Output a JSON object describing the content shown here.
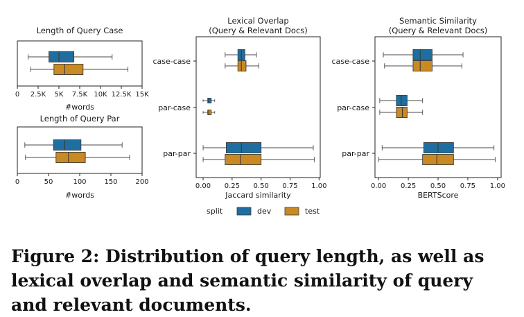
{
  "figure": {
    "caption": "Figure 2: Distribution of query length, as well as lexical overlap and semantic similarity of query and relevant documents."
  },
  "legend": {
    "title": "split",
    "entries": [
      {
        "label": "dev",
        "color": "#1f6ea0"
      },
      {
        "label": "test",
        "color": "#c98a24"
      }
    ]
  },
  "chart_data": [
    {
      "type": "box",
      "title": "Length of Query Case",
      "xlabel": "#words",
      "xlim": [
        0,
        15000
      ],
      "xticks": [
        0,
        2500,
        5000,
        7500,
        10000,
        12500,
        15000
      ],
      "xticklabels": [
        "0",
        "2.5K",
        "5K",
        "7.5K",
        "10K",
        "12.5K",
        "15K"
      ],
      "boxes": [
        {
          "split": "dev",
          "whisker_low": 1300,
          "q1": 3800,
          "median": 5000,
          "q3": 6800,
          "whisker_high": 11400
        },
        {
          "split": "test",
          "whisker_low": 1600,
          "q1": 4400,
          "median": 5700,
          "q3": 7900,
          "whisker_high": 13300
        }
      ]
    },
    {
      "type": "box",
      "title": "Length of Query Par",
      "xlabel": "#words",
      "xlim": [
        0,
        200
      ],
      "xticks": [
        0,
        50,
        100,
        150,
        200
      ],
      "xticklabels": [
        "0",
        "50",
        "100",
        "150",
        "200"
      ],
      "boxes": [
        {
          "split": "dev",
          "whisker_low": 12,
          "q1": 58,
          "median": 76,
          "q3": 102,
          "whisker_high": 168
        },
        {
          "split": "test",
          "whisker_low": 13,
          "q1": 62,
          "median": 82,
          "q3": 109,
          "whisker_high": 180
        }
      ]
    },
    {
      "type": "box",
      "title": "Lexical Overlap\n(Query & Relevant Docs)",
      "xlabel": "Jaccard similarity",
      "xlim": [
        -0.06,
        1.01
      ],
      "xticks": [
        0,
        0.25,
        0.5,
        0.75,
        1.0
      ],
      "xticklabels": [
        "0.00",
        "0.25",
        "0.50",
        "0.75",
        "1.00"
      ],
      "categories": [
        "case-case",
        "par-case",
        "par-par"
      ],
      "boxes": [
        {
          "category": "case-case",
          "split": "dev",
          "whisker_low": 0.19,
          "q1": 0.3,
          "median": 0.33,
          "q3": 0.36,
          "whisker_high": 0.46
        },
        {
          "category": "case-case",
          "split": "test",
          "whisker_low": 0.19,
          "q1": 0.3,
          "median": 0.33,
          "q3": 0.37,
          "whisker_high": 0.48
        },
        {
          "category": "par-case",
          "split": "dev",
          "whisker_low": 0.0,
          "q1": 0.04,
          "median": 0.05,
          "q3": 0.07,
          "whisker_high": 0.1
        },
        {
          "category": "par-case",
          "split": "test",
          "whisker_low": 0.0,
          "q1": 0.04,
          "median": 0.05,
          "q3": 0.07,
          "whisker_high": 0.1
        },
        {
          "category": "par-par",
          "split": "dev",
          "whisker_low": 0.0,
          "q1": 0.2,
          "median": 0.33,
          "q3": 0.5,
          "whisker_high": 0.95
        },
        {
          "category": "par-par",
          "split": "test",
          "whisker_low": 0.0,
          "q1": 0.19,
          "median": 0.32,
          "q3": 0.5,
          "whisker_high": 0.96
        }
      ]
    },
    {
      "type": "box",
      "title": "Semantic Similarity\n(Query & Relevant Docs)",
      "xlabel": "BERTScore",
      "xlim": [
        -0.03,
        1.03
      ],
      "xticks": [
        0,
        0.25,
        0.5,
        0.75,
        1.0
      ],
      "xticklabels": [
        "0.00",
        "0.25",
        "0.50",
        "0.75",
        "1.00"
      ],
      "categories": [
        "case-case",
        "par-case",
        "par-par"
      ],
      "boxes": [
        {
          "category": "case-case",
          "split": "dev",
          "whisker_low": 0.04,
          "q1": 0.29,
          "median": 0.35,
          "q3": 0.45,
          "whisker_high": 0.71
        },
        {
          "category": "case-case",
          "split": "test",
          "whisker_low": 0.05,
          "q1": 0.29,
          "median": 0.35,
          "q3": 0.45,
          "whisker_high": 0.7
        },
        {
          "category": "par-case",
          "split": "dev",
          "whisker_low": 0.01,
          "q1": 0.15,
          "median": 0.19,
          "q3": 0.24,
          "whisker_high": 0.37
        },
        {
          "category": "par-case",
          "split": "test",
          "whisker_low": 0.01,
          "q1": 0.15,
          "median": 0.2,
          "q3": 0.24,
          "whisker_high": 0.37
        },
        {
          "category": "par-par",
          "split": "dev",
          "whisker_low": 0.03,
          "q1": 0.38,
          "median": 0.5,
          "q3": 0.63,
          "whisker_high": 0.97
        },
        {
          "category": "par-par",
          "split": "test",
          "whisker_low": 0.0,
          "q1": 0.37,
          "median": 0.49,
          "q3": 0.63,
          "whisker_high": 0.98
        }
      ]
    }
  ]
}
